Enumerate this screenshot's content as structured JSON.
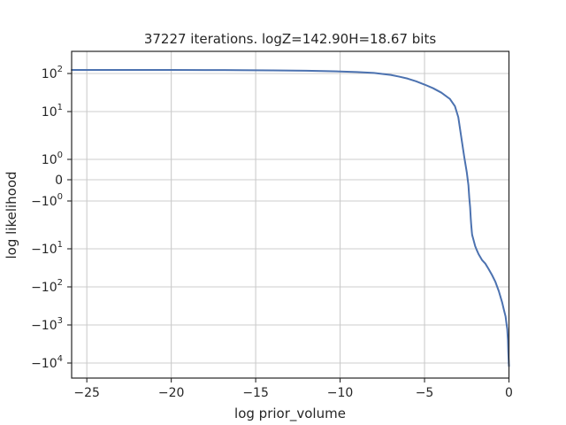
{
  "chart_data": {
    "type": "line",
    "title": "37227 iterations. logZ=142.90H=18.67 bits",
    "xlabel": "log prior_volume",
    "ylabel": "log likelihood",
    "xlim": [
      -25.9,
      0
    ],
    "y_scale": "symlog",
    "grid": true,
    "x_ticks": [
      {
        "value": -25,
        "label": "−25"
      },
      {
        "value": -20,
        "label": "−20"
      },
      {
        "value": -15,
        "label": "−15"
      },
      {
        "value": -10,
        "label": "−10"
      },
      {
        "value": -5,
        "label": "−5"
      },
      {
        "value": 0,
        "label": "0"
      }
    ],
    "y_ticks": [
      {
        "value": 100,
        "base": "10",
        "exp": "2",
        "sign": ""
      },
      {
        "value": 10,
        "base": "10",
        "exp": "1",
        "sign": ""
      },
      {
        "value": 1,
        "base": "10",
        "exp": "0",
        "sign": ""
      },
      {
        "value": 0,
        "base": "0",
        "exp": "",
        "sign": ""
      },
      {
        "value": -1,
        "base": "10",
        "exp": "0",
        "sign": "−"
      },
      {
        "value": -10,
        "base": "10",
        "exp": "1",
        "sign": "−"
      },
      {
        "value": -100,
        "base": "10",
        "exp": "2",
        "sign": "−"
      },
      {
        "value": -1000,
        "base": "10",
        "exp": "3",
        "sign": "−"
      },
      {
        "value": -10000,
        "base": "10",
        "exp": "4",
        "sign": "−"
      }
    ],
    "series": [
      {
        "color": "#4c72b0",
        "x": [
          -25.9,
          -25,
          -22,
          -20,
          -18,
          -16,
          -15,
          -14,
          -12,
          -11,
          -10,
          -9,
          -8,
          -7,
          -6.5,
          -6,
          -5.5,
          -5,
          -4.5,
          -4,
          -3.5,
          -3.2,
          -3.0,
          -2.8,
          -2.65,
          -2.5,
          -2.4,
          -2.35,
          -2.3,
          -2.28,
          -2.26,
          -2.24,
          -2.22,
          -2.2,
          -2.18,
          -2.1,
          -2.0,
          -1.9,
          -1.8,
          -1.6,
          -1.4,
          -1.2,
          -1.0,
          -0.8,
          -0.6,
          -0.4,
          -0.3,
          -0.2,
          -0.15,
          -0.1,
          -0.06,
          -0.04,
          -0.02,
          0
        ],
        "y": [
          160,
          160,
          159,
          158,
          157,
          155,
          153,
          150,
          143,
          137,
          130,
          120,
          107,
          92,
          83,
          74,
          63,
          52,
          42,
          32,
          22,
          14,
          8,
          3,
          1.2,
          0.3,
          -0.2,
          -0.8,
          -1.5,
          -2.1,
          -2.8,
          -3.5,
          -4.2,
          -5.0,
          -5.7,
          -7,
          -9,
          -11,
          -14,
          -20,
          -25,
          -35,
          -50,
          -75,
          -130,
          -260,
          -400,
          -600,
          -900,
          -1300,
          -2500,
          -5000,
          -8000,
          -12000
        ]
      }
    ]
  }
}
